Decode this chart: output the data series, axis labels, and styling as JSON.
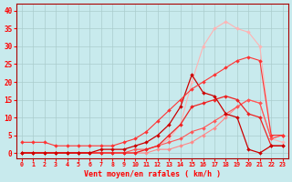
{
  "xlabel": "Vent moyen/en rafales ( km/h )",
  "background_color": "#c8eaed",
  "grid_color": "#aacccc",
  "x_values": [
    0,
    1,
    2,
    3,
    4,
    5,
    6,
    7,
    8,
    9,
    10,
    11,
    12,
    13,
    14,
    15,
    16,
    17,
    18,
    19,
    20,
    21,
    22,
    23
  ],
  "xlim": [
    -0.5,
    23.5
  ],
  "ylim": [
    -1.5,
    42
  ],
  "yticks": [
    0,
    5,
    10,
    15,
    20,
    25,
    30,
    35,
    40
  ],
  "series": [
    {
      "color": "#ffb3b3",
      "linewidth": 0.8,
      "markersize": 2.0,
      "values": [
        0,
        0,
        0,
        0,
        0,
        0,
        0,
        0,
        0,
        0,
        0,
        1,
        2,
        4,
        8,
        20,
        30,
        35,
        37,
        35,
        34,
        30,
        4,
        3
      ]
    },
    {
      "color": "#ff8888",
      "linewidth": 0.8,
      "markersize": 2.0,
      "values": [
        0,
        0,
        0,
        0,
        0,
        0,
        0,
        0,
        0,
        0,
        0,
        0,
        1,
        1,
        2,
        3,
        5,
        7,
        10,
        13,
        15,
        14,
        4,
        5
      ]
    },
    {
      "color": "#ff5555",
      "linewidth": 0.8,
      "markersize": 2.0,
      "values": [
        0,
        0,
        0,
        0,
        0,
        0,
        0,
        0,
        0,
        0,
        1,
        1,
        2,
        3,
        4,
        6,
        7,
        9,
        11,
        13,
        15,
        14,
        4,
        5
      ]
    },
    {
      "color": "#ee2222",
      "linewidth": 0.9,
      "markersize": 2.0,
      "values": [
        0,
        0,
        0,
        0,
        0,
        0,
        0,
        0,
        0,
        0,
        0,
        1,
        2,
        5,
        8,
        13,
        14,
        15,
        16,
        15,
        11,
        10,
        2,
        2
      ]
    },
    {
      "color": "#cc0000",
      "linewidth": 0.9,
      "markersize": 2.0,
      "values": [
        0,
        0,
        0,
        0,
        0,
        0,
        0,
        1,
        1,
        1,
        2,
        3,
        5,
        8,
        13,
        22,
        17,
        16,
        11,
        10,
        1,
        0,
        2,
        2
      ]
    },
    {
      "color": "#ff3333",
      "linewidth": 0.8,
      "markersize": 2.0,
      "values": [
        3,
        3,
        3,
        2,
        2,
        2,
        2,
        2,
        2,
        3,
        4,
        6,
        9,
        12,
        15,
        18,
        20,
        22,
        24,
        26,
        27,
        26,
        5,
        5
      ]
    }
  ]
}
